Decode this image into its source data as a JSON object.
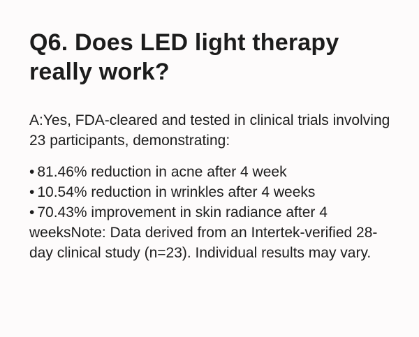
{
  "faq": {
    "question": "Q6. Does LED light therapy really work?",
    "answer": "A:Yes, FDA-cleared and tested in clinical trials involving 23 participants, demonstrating:",
    "bullets": [
      "81.46% reduction in acne after 4 week",
      "10.54% reduction in wrinkles after 4 weeks",
      "70.43% improvement in skin radiance after 4 weeksNote: Data derived from an Intertek-verified 28-day clinical study (n=23). Individual results may vary."
    ]
  }
}
